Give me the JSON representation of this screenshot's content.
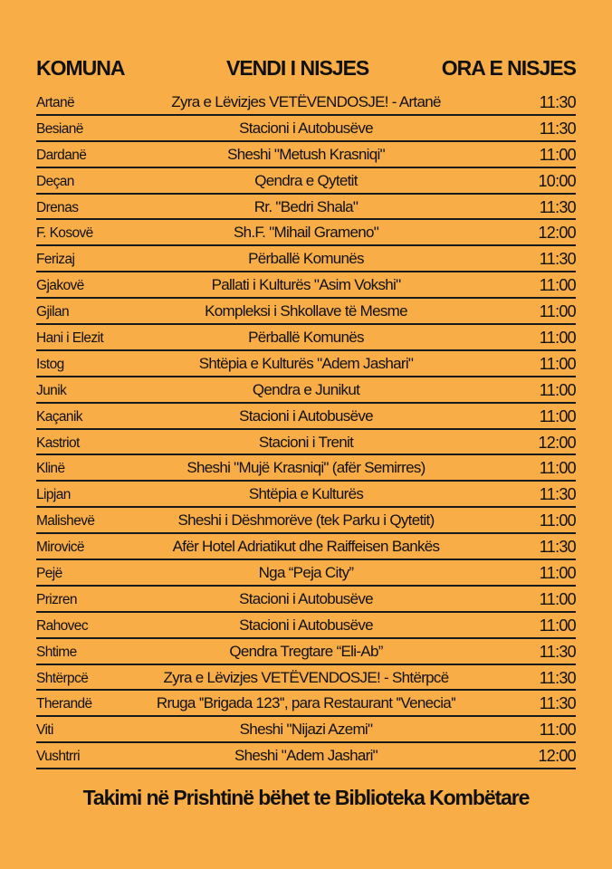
{
  "header": {
    "komuna": "KOMUNA",
    "vendi": "VENDI I NISJES",
    "ora": "ORA E NISJES"
  },
  "rows": [
    {
      "komuna": "Artanë",
      "vendi": "Zyra e Lëvizjes VETËVENDOSJE! - Artanë",
      "ora": "11:30"
    },
    {
      "komuna": "Besianë",
      "vendi": "Stacioni i Autobusëve",
      "ora": "11:30"
    },
    {
      "komuna": "Dardanë",
      "vendi": "Sheshi \"Metush Krasniqi\"",
      "ora": "11:00"
    },
    {
      "komuna": "Deçan",
      "vendi": "Qendra e Qytetit",
      "ora": "10:00"
    },
    {
      "komuna": "Drenas",
      "vendi": "Rr. \"Bedri Shala\"",
      "ora": "11:30"
    },
    {
      "komuna": "F. Kosovë",
      "vendi": "Sh.F. \"Mihail Grameno\"",
      "ora": "12:00"
    },
    {
      "komuna": "Ferizaj",
      "vendi": "Përballë Komunës",
      "ora": "11:30"
    },
    {
      "komuna": "Gjakovë",
      "vendi": "Pallati i Kulturës \"Asim Vokshi\"",
      "ora": "11:00"
    },
    {
      "komuna": "Gjilan",
      "vendi": "Kompleksi i Shkollave të Mesme",
      "ora": "11:00"
    },
    {
      "komuna": "Hani i Elezit",
      "vendi": "Përballë Komunës",
      "ora": "11:00"
    },
    {
      "komuna": "Istog",
      "vendi": "Shtëpia e Kulturës \"Adem Jashari\"",
      "ora": "11:00"
    },
    {
      "komuna": "Junik",
      "vendi": "Qendra e Junikut",
      "ora": "11:00"
    },
    {
      "komuna": "Kaçanik",
      "vendi": "Stacioni i Autobusëve",
      "ora": "11:00"
    },
    {
      "komuna": "Kastriot",
      "vendi": "Stacioni i Trenit",
      "ora": "12:00"
    },
    {
      "komuna": "Klinë",
      "vendi": "Sheshi \"Mujë Krasniqi\" (afër Semirres)",
      "ora": "11:00"
    },
    {
      "komuna": "Lipjan",
      "vendi": "Shtëpia e Kulturës",
      "ora": "11:30"
    },
    {
      "komuna": "Malishevë",
      "vendi": "Sheshi i Dëshmorëve (tek Parku i Qytetit)",
      "ora": "11:00"
    },
    {
      "komuna": "Mirovicë",
      "vendi": "Afër Hotel Adriatikut dhe Raiffeisen Bankës",
      "ora": "11:30"
    },
    {
      "komuna": "Pejë",
      "vendi": "Nga “Peja City”",
      "ora": "11:00"
    },
    {
      "komuna": "Prizren",
      "vendi": "Stacioni i Autobusëve",
      "ora": "11:00"
    },
    {
      "komuna": "Rahovec",
      "vendi": "Stacioni i Autobusëve",
      "ora": "11:00"
    },
    {
      "komuna": "Shtime",
      "vendi": "Qendra Tregtare “Eli-Ab”",
      "ora": "11:30"
    },
    {
      "komuna": "Shtërpcë",
      "vendi": "Zyra e Lëvizjes VETËVENDOSJE! - Shtërpcë",
      "ora": "11:30"
    },
    {
      "komuna": "Therandë",
      "vendi": "Rruga ''Brigada 123'', para Restaurant ''Venecia''",
      "ora": "11:30"
    },
    {
      "komuna": "Viti",
      "vendi": "Sheshi \"Nijazi Azemi\"",
      "ora": "11:00"
    },
    {
      "komuna": "Vushtrri",
      "vendi": "Sheshi \"Adem Jashari\"",
      "ora": "12:00"
    }
  ],
  "footer": "Takimi në Prishtinë bëhet te Biblioteka Kombëtare",
  "colors": {
    "background": "#F9AD47",
    "text": "#111111"
  }
}
